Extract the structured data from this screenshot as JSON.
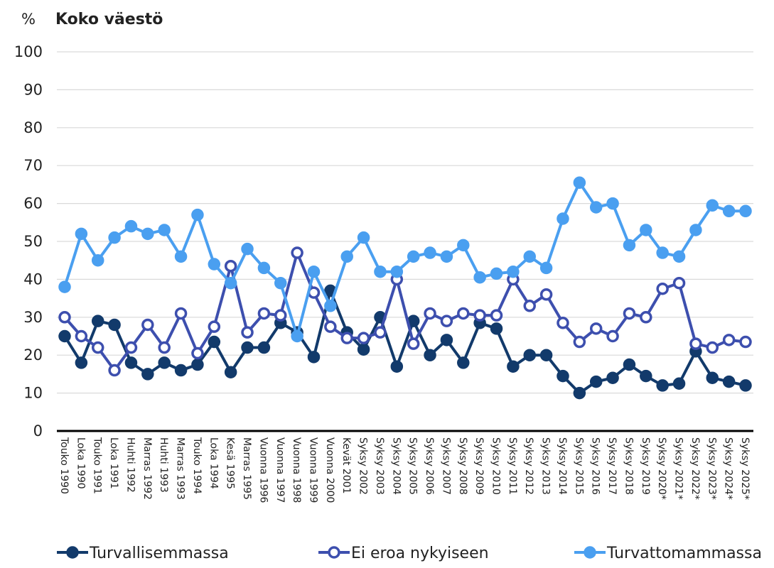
{
  "chart_data": {
    "type": "line",
    "title": "Koko väestö",
    "y_label": "%",
    "categories": [
      "Touko 1990",
      "Loka 1990",
      "Touko 1991",
      "Loka 1991",
      "Huhti 1992",
      "Marras 1992",
      "Huhti 1993",
      "Marras 1993",
      "Touko 1994",
      "Loka 1994",
      "Kesä 1995",
      "Marras 1995",
      "Vuonna 1996",
      "Vuonna 1997",
      "Vuonna 1998",
      "Vuonna 1999",
      "Vuonna 2000",
      "Kevät 2001",
      "Syksy 2002",
      "Syksy 2003",
      "Syksy 2004",
      "Syksy 2005",
      "Syksy 2006",
      "Syksy 2007",
      "Syksy 2008",
      "Syksy 2009",
      "Syksy 2010",
      "Syksy 2011",
      "Syksy 2012",
      "Syksy 2013",
      "Syksy 2014",
      "Syksy 2015",
      "Syksy 2016",
      "Syksy 2017",
      "Syksy 2018",
      "Syksy 2019",
      "Syksy 2020*",
      "Syksy 2021*",
      "Syksy 2022*",
      "Syksy 2023*",
      "Syksy 2024*",
      "Syksy 2025*"
    ],
    "series": [
      {
        "name": "Turvallisemmassa",
        "color": "#123a6b",
        "marker_fill": "#123a6b",
        "values": [
          25,
          18,
          29,
          28,
          18,
          15,
          18,
          16,
          17.5,
          23.5,
          15.5,
          22,
          22,
          28.5,
          26,
          19.5,
          37,
          26,
          21.5,
          30,
          17,
          29,
          20,
          24,
          18,
          28.5,
          27,
          17,
          20,
          20,
          14.5,
          10,
          13,
          14,
          17.5,
          14.5,
          12,
          12.5,
          21,
          14,
          13,
          12
        ]
      },
      {
        "name": "Ei eroa nykyiseen",
        "color": "#3d4fae",
        "marker_fill": "#ffffff",
        "values": [
          30,
          25,
          22,
          16,
          22,
          28,
          22,
          31,
          20.5,
          27.5,
          43.5,
          26,
          31,
          30.5,
          47,
          36.5,
          27.5,
          24.5,
          24.5,
          26,
          40,
          23,
          31,
          29,
          31,
          30.5,
          30.5,
          40,
          33,
          36,
          28.5,
          23.5,
          27,
          25,
          31,
          30,
          37.5,
          39,
          23,
          22,
          24,
          23.5
        ]
      },
      {
        "name": "Turvattomammassa",
        "color": "#4a9ff0",
        "marker_fill": "#4a9ff0",
        "values": [
          38,
          52,
          45,
          51,
          54,
          52,
          53,
          46,
          57,
          44,
          39,
          48,
          43,
          39,
          25,
          42,
          33,
          46,
          51,
          42,
          42,
          46,
          47,
          46,
          49,
          40.5,
          41.5,
          42,
          46,
          43,
          56,
          65.5,
          59,
          60,
          49,
          53,
          47,
          46,
          53,
          59.5,
          58,
          58
        ]
      }
    ],
    "ylim": [
      0,
      100
    ],
    "yticks": [
      0,
      10,
      20,
      30,
      40,
      50,
      60,
      70,
      80,
      90,
      100
    ],
    "grid": true
  }
}
